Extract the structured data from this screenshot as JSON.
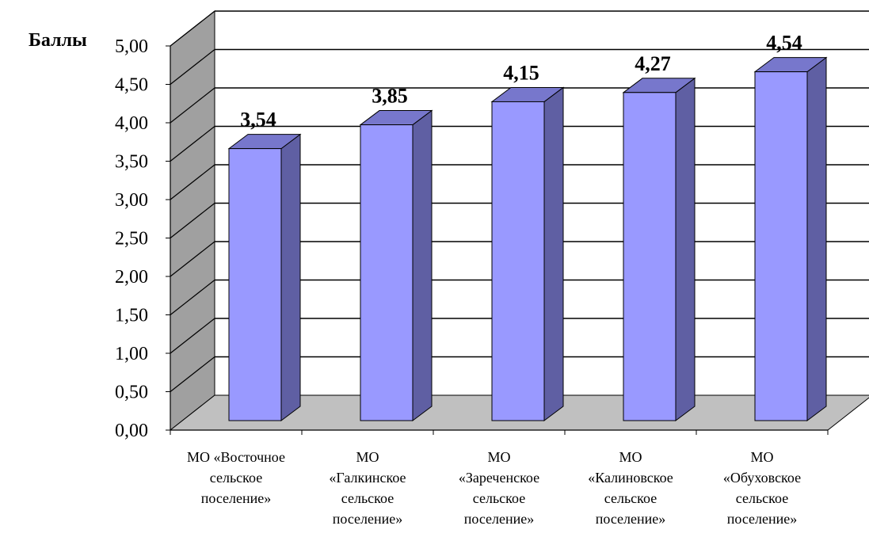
{
  "chart_data": {
    "type": "bar",
    "title": "",
    "xlabel": "",
    "ylabel": "Баллы",
    "ylim": [
      0,
      5
    ],
    "yticks": [
      "0,00",
      "0,50",
      "1,00",
      "1,50",
      "2,00",
      "2,50",
      "3,00",
      "3,50",
      "4,00",
      "4,50",
      "5,00"
    ],
    "categories": [
      "МО «Восточное сельское поселение»",
      "МО «Галкинское сельское поселение»",
      "МО «Зареченское сельское поселение»",
      "МО «Калиновское сельское поселение»",
      "МО «Обуховское сельское поселение»"
    ],
    "category_lines": [
      [
        "МО «Восточное",
        "сельское",
        "поселение»"
      ],
      [
        "МО",
        "«Галкинское",
        "сельское",
        "поселение»"
      ],
      [
        "МО",
        "«Зареченское",
        "сельское",
        "поселение»"
      ],
      [
        "МО",
        "«Калиновское",
        "сельское",
        "поселение»"
      ],
      [
        "МО",
        "«Обуховское",
        "сельское",
        "поселение»"
      ]
    ],
    "values": [
      3.54,
      3.85,
      4.15,
      4.27,
      4.54
    ],
    "data_labels": [
      "3,54",
      "3,85",
      "4,15",
      "4,27",
      "4,54"
    ],
    "grid": true,
    "legend": "none",
    "colors": {
      "bar_front": "#9999ff",
      "bar_side": "#5f5fa3",
      "bar_top": "#7777cc",
      "wall": "#a0a0a0",
      "floor": "#c0c0c0",
      "grid": "#000000"
    }
  }
}
